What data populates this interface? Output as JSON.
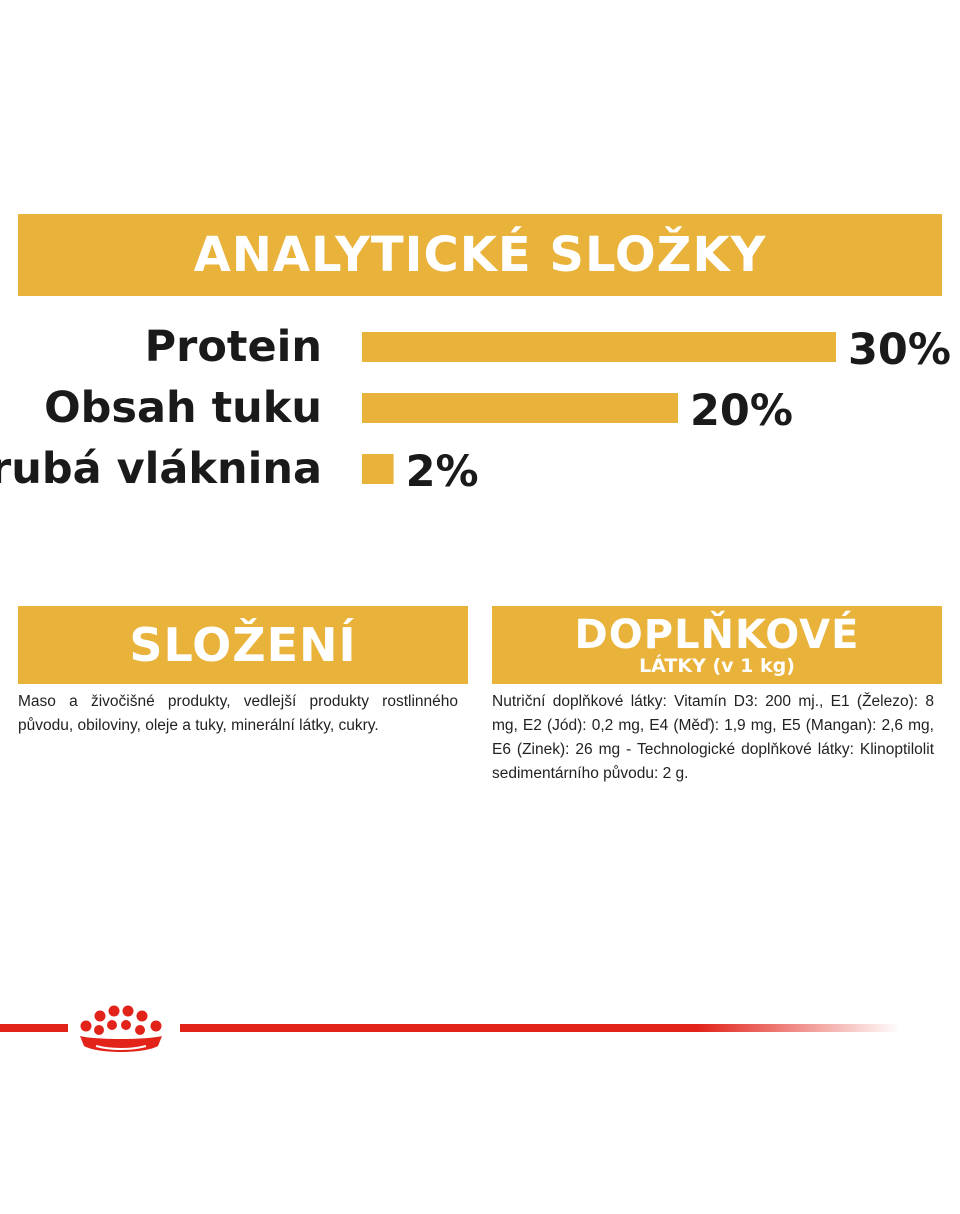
{
  "analytics": {
    "title": "ANALYTICKÉ SLOŽKY"
  },
  "chart_data": {
    "type": "bar",
    "orientation": "horizontal",
    "categories": [
      "Protein",
      "Obsah tuku",
      "Hrubá vláknina"
    ],
    "values": [
      30,
      20,
      2
    ],
    "value_labels": [
      "30%",
      "20%",
      "2%"
    ],
    "unit": "%",
    "xlim": [
      0,
      30
    ],
    "bar_color": "#E9B23A",
    "grid": false,
    "legend": "none"
  },
  "composition": {
    "title": "SLOŽENÍ",
    "text": "Maso a živočišné produkty, vedlejší produkty rostlinného původu, obiloviny, oleje a tuky, minerální látky, cukry."
  },
  "additives": {
    "title": "DOPLŇKOVÉ",
    "subtitle": "LÁTKY (v 1 kg)",
    "text": "Nutriční doplňkové látky: Vitamín D3: 200 mj., E1 (Železo): 8 mg, E2 (Jód): 0,2 mg, E4 (Měď): 1,9 mg, E5 (Mangan): 2,6 mg, E6 (Zinek): 26 mg - Technologické doplňkové látky: Klinoptilolit sedimentárního původu: 2 g."
  },
  "colors": {
    "accent": "#E9B23A",
    "brand_red": "#E2231A",
    "text": "#1a1a1a"
  },
  "icons": {
    "brand_logo": "crown-icon"
  }
}
